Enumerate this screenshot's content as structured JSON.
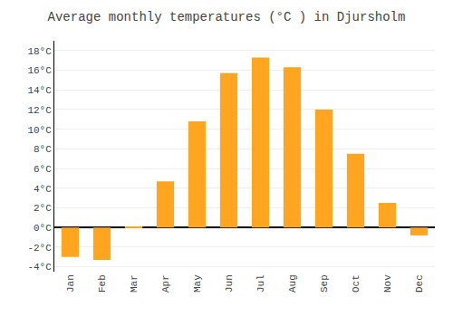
{
  "chart_data": {
    "type": "bar",
    "title": "Average monthly temperatures (°C ) in Djursholm",
    "categories": [
      "Jan",
      "Feb",
      "Mar",
      "Apr",
      "May",
      "Jun",
      "Jul",
      "Aug",
      "Sep",
      "Oct",
      "Nov",
      "Dec"
    ],
    "values": [
      -3.0,
      -3.3,
      0.1,
      4.7,
      10.8,
      15.7,
      17.3,
      16.3,
      12.0,
      7.5,
      2.5,
      -0.8
    ],
    "color": "#FFA520",
    "ylim": [
      -4.5,
      19
    ],
    "yticks": [
      {
        "value": -4,
        "label": "-4°C"
      },
      {
        "value": -2,
        "label": "-2°C"
      },
      {
        "value": 0,
        "label": "0°C"
      },
      {
        "value": 2,
        "label": "2°C"
      },
      {
        "value": 4,
        "label": "4°C"
      },
      {
        "value": 6,
        "label": "6°C"
      },
      {
        "value": 8,
        "label": "8°C"
      },
      {
        "value": 10,
        "label": "10°C"
      },
      {
        "value": 12,
        "label": "12°C"
      },
      {
        "value": 14,
        "label": "14°C"
      },
      {
        "value": 16,
        "label": "16°C"
      },
      {
        "value": 18,
        "label": "18°C"
      }
    ],
    "grid": true
  }
}
